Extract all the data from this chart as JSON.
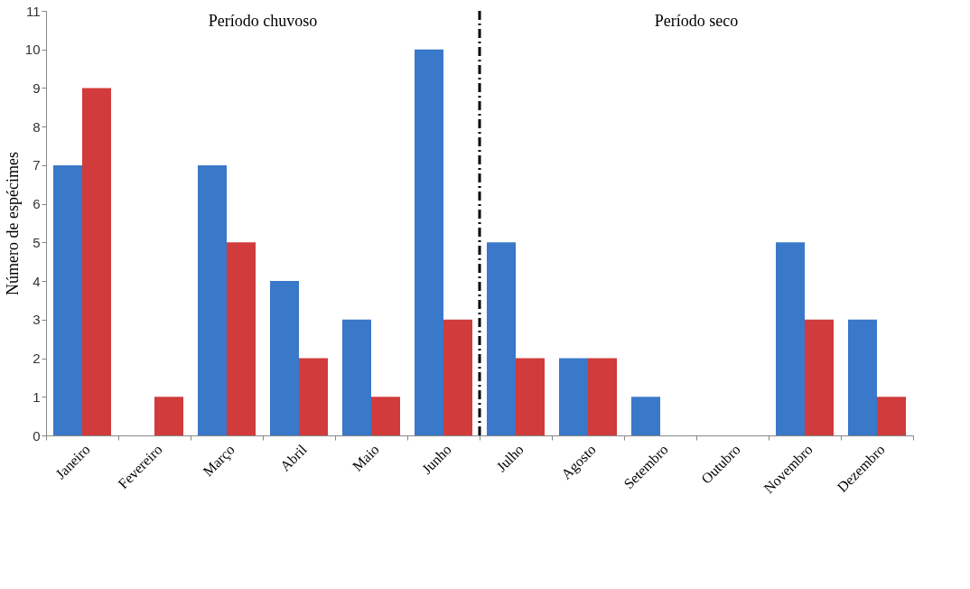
{
  "chart_data": {
    "type": "bar",
    "ylabel": "Número de espécimes",
    "categories": [
      "Janeiro",
      "Fevereiro",
      "Março",
      "Abril",
      "Maio",
      "Junho",
      "Julho",
      "Agosto",
      "Setembro",
      "Outubro",
      "Novembro",
      "Dezembro"
    ],
    "series": [
      {
        "color": "#3a78c9",
        "values": [
          7,
          0,
          7,
          4,
          3,
          10,
          5,
          2,
          1,
          0,
          5,
          3
        ]
      },
      {
        "color": "#d13b3b",
        "values": [
          9,
          1,
          5,
          2,
          1,
          3,
          2,
          2,
          0,
          0,
          3,
          1
        ]
      }
    ],
    "ylim": [
      0,
      11
    ],
    "yticks": [
      0,
      1,
      2,
      3,
      4,
      5,
      6,
      7,
      8,
      9,
      10,
      11
    ],
    "grid": false,
    "legend": false,
    "annotations": [
      "Período chuvoso",
      "Período seco"
    ]
  }
}
